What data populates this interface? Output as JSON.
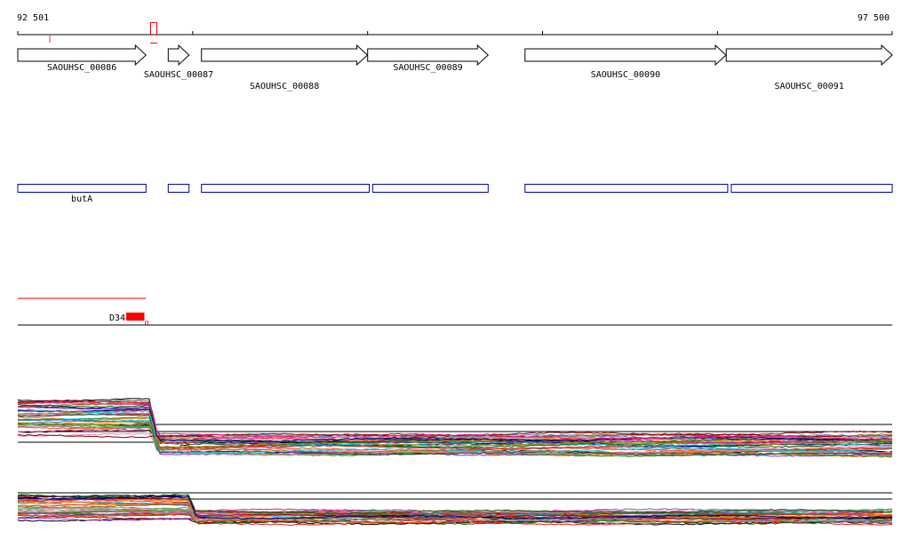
{
  "ruler": {
    "start_label": "92 501",
    "end_label": "97 500",
    "start": 92501,
    "end": 97500,
    "ticks": [
      92501,
      93501,
      94501,
      95501,
      96501,
      97500
    ],
    "highlight_color": "#ff0000"
  },
  "genes": [
    {
      "id": "SAOUHSC_00086",
      "start": 92501,
      "end": 93234,
      "strand": "+",
      "row": 0
    },
    {
      "id": "SAOUHSC_00087",
      "start": 93361,
      "end": 93480,
      "strand": "+",
      "row": 1
    },
    {
      "id": "SAOUHSC_00088",
      "start": 93551,
      "end": 94500,
      "strand": "+",
      "row": 2
    },
    {
      "id": "SAOUHSC_00089",
      "start": 94501,
      "end": 95190,
      "strand": "+",
      "row": 0
    },
    {
      "id": "SAOUHSC_00090",
      "start": 95401,
      "end": 96550,
      "strand": "+",
      "row": 1
    },
    {
      "id": "SAOUHSC_00091",
      "start": 96551,
      "end": 97500,
      "strand": "+",
      "row": 2
    }
  ],
  "features": {
    "color": "#0000aa",
    "items": [
      {
        "start": 92501,
        "end": 93234,
        "label": "butA"
      },
      {
        "start": 93361,
        "end": 93480,
        "label": ""
      },
      {
        "start": 93551,
        "end": 94510,
        "label": ""
      },
      {
        "start": 94530,
        "end": 95190,
        "label": ""
      },
      {
        "start": 95401,
        "end": 96560,
        "label": ""
      },
      {
        "start": 96580,
        "end": 97500,
        "label": ""
      }
    ]
  },
  "variant": {
    "label": "D34",
    "color": "#ff0000",
    "line_start": 92501,
    "line_end": 93234,
    "block_start": 93121,
    "block_end": 93225
  },
  "tracks": {
    "colors": [
      "#000000",
      "#e41a1c",
      "#377eb8",
      "#4daf4a",
      "#984ea3",
      "#ff7f00",
      "#a65628",
      "#f781bf",
      "#999999",
      "#8b0000",
      "#006400",
      "#00008b",
      "#b8860b",
      "#2f4f4f",
      "#ff1493",
      "#00ced1",
      "#556b2f",
      "#8a2be2",
      "#ff4500",
      "#228b22"
    ],
    "panel1_drop_position": 93260,
    "panel2_drop_position": 93480
  }
}
